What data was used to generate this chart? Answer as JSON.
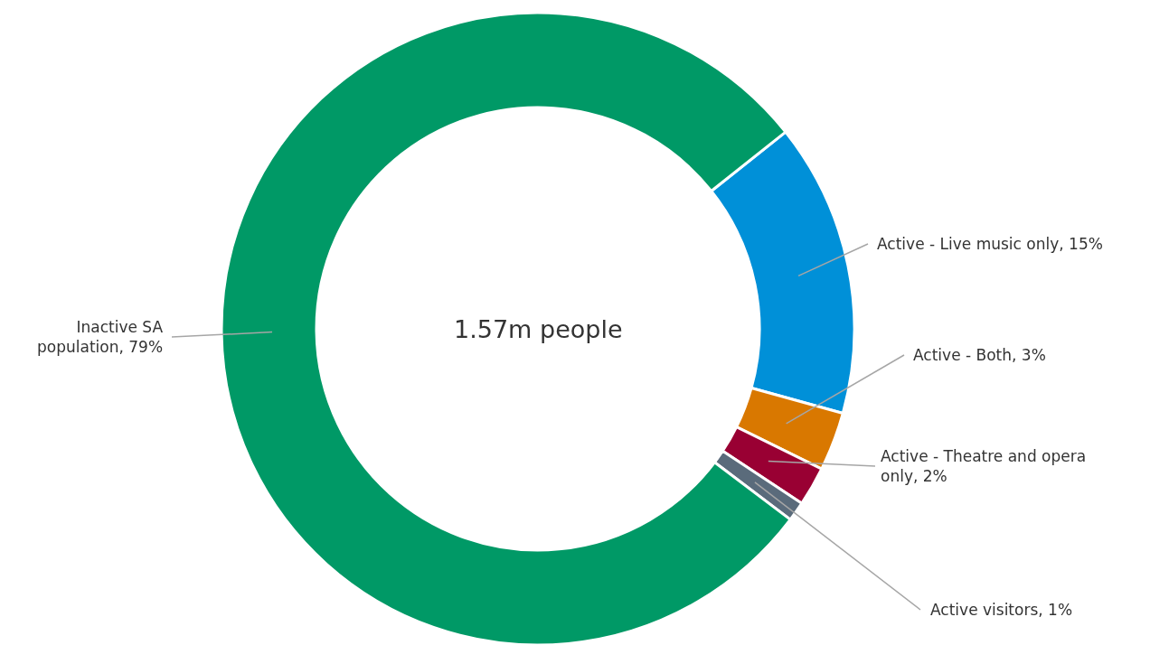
{
  "chart_data": {
    "type": "donut",
    "categories": [
      "Active - Live music only",
      "Active - Both",
      "Active - Theatre and opera only",
      "Active visitors",
      "Inactive SA population"
    ],
    "values": [
      15,
      3,
      2,
      1,
      79
    ],
    "value_labels": [
      "15%",
      "3%",
      "2%",
      "1%",
      "79%"
    ],
    "colors": [
      "#0090d8",
      "#d97800",
      "#990033",
      "#5a6b7b",
      "#009966"
    ],
    "annotations": [
      "1.57m people"
    ],
    "legend": false
  }
}
